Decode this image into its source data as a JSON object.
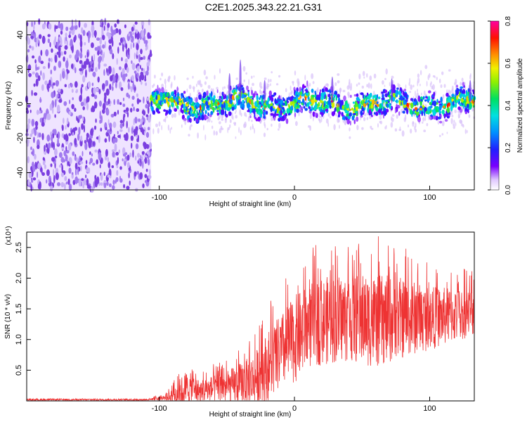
{
  "title": "C2E1.2025.343.22.21.G31",
  "colors": {
    "snr_line": "#ee3333",
    "spectrogram_noise": "#8a4be0"
  },
  "colorbar": {
    "label": "Normalized spectral amplitude",
    "ticks": [
      "0.0",
      "0.2",
      "0.4",
      "0.6",
      "0.8"
    ],
    "range": [
      0,
      0.8
    ]
  },
  "chart_data": [
    {
      "type": "heatmap",
      "title": "C2E1.2025.343.22.21.G31",
      "xlabel": "Height of straight line (km)",
      "ylabel": "Frequency (Hz)",
      "xlim": [
        -198,
        133
      ],
      "ylim": [
        -50,
        48
      ],
      "xticks": [
        "-100",
        "0",
        "100"
      ],
      "yticks": [
        "-40",
        "-20",
        "0",
        "20",
        "40"
      ],
      "regions": [
        {
          "name": "noise",
          "x": [
            -198,
            -106
          ],
          "frequency_spread": [
            -50,
            48
          ],
          "amplitude": 0.05
        },
        {
          "name": "signal",
          "x": [
            -106,
            133
          ],
          "center_frequency": 0,
          "spread_hz": 12,
          "peak_amplitude": 0.75
        }
      ]
    },
    {
      "type": "line",
      "xlabel": "Height of straight line (km)",
      "ylabel": "SNR (10 * v/v)",
      "scale_label": "(x10⁴)",
      "xlim": [
        -198,
        133
      ],
      "ylim": [
        0,
        2.75
      ],
      "xticks": [
        "-100",
        "0",
        "100"
      ],
      "yticks": [
        "0.5",
        "1.0",
        "1.5",
        "2.0",
        "2.5"
      ],
      "series": [
        {
          "name": "SNR",
          "x": [
            -198,
            -110,
            -95,
            -85,
            -80,
            -70,
            -60,
            -50,
            -40,
            -30,
            -20,
            -10,
            0,
            10,
            20,
            40,
            60,
            80,
            100,
            120,
            133
          ],
          "y_mean": [
            0.02,
            0.02,
            0.05,
            0.12,
            0.2,
            0.15,
            0.2,
            0.22,
            0.28,
            0.35,
            0.55,
            0.8,
            1.0,
            1.2,
            1.3,
            1.35,
            1.3,
            1.35,
            1.35,
            1.4,
            1.45
          ],
          "y_max": [
            0.04,
            0.04,
            0.15,
            0.55,
            0.75,
            0.5,
            0.6,
            0.7,
            0.9,
            1.1,
            1.6,
            1.9,
            2.3,
            2.45,
            2.6,
            2.65,
            2.7,
            2.55,
            2.3,
            2.2,
            2.15
          ]
        }
      ]
    }
  ]
}
